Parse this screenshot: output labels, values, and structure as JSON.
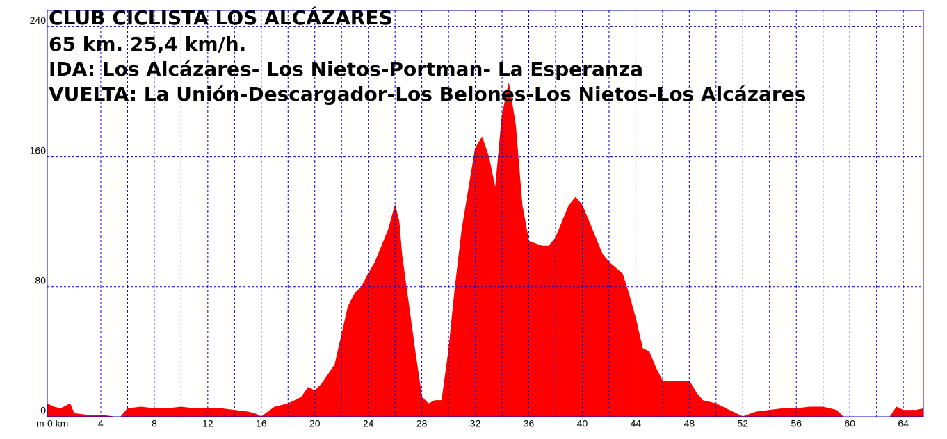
{
  "chart_data": {
    "type": "area",
    "title": "CLUB CICLISTA LOS ALCÁZARES",
    "annotations": [
      "65 km. 25,4 km/h.",
      "IDA: Los Alcázares- Los Nietos-Portman- La Esperanza",
      "VUELTA: La Unión-Descargador-Los Belones-Los Nietos-Los Alcázares"
    ],
    "y_label": "m",
    "color": "#ff0000",
    "grid": true,
    "grid_color": "#0000cc",
    "xlim": [
      0,
      65.5
    ],
    "ylim": [
      0,
      250
    ],
    "xticks": [
      {
        "value": 0,
        "label": "0 km"
      },
      4,
      8,
      12,
      16,
      20,
      24,
      28,
      32,
      36,
      40,
      44,
      48,
      52,
      56,
      60,
      64
    ],
    "xminorticks": [
      2,
      6,
      10,
      14,
      18,
      22,
      26,
      30,
      34,
      38,
      42,
      46,
      50,
      54,
      58,
      62
    ],
    "yticks": [
      0,
      80,
      160,
      240
    ],
    "x": [
      0,
      0.5,
      1,
      1.7,
      2,
      3,
      4,
      5,
      5.5,
      6,
      7,
      8,
      9,
      10,
      11,
      12,
      13,
      14,
      15,
      15.5,
      16,
      16.5,
      17,
      18,
      19,
      19.5,
      20,
      20.5,
      21,
      21.5,
      22,
      22.5,
      23,
      23.5,
      24,
      24.5,
      25,
      25.5,
      26,
      26.3,
      26.5,
      27,
      27.5,
      28,
      28.5,
      29,
      29.5,
      30,
      30.5,
      31,
      31.5,
      32,
      32.5,
      33,
      33.5,
      34,
      34.5,
      35,
      35.5,
      36,
      37,
      37.5,
      38,
      38.5,
      39,
      39.5,
      40,
      40.5,
      41,
      41.5,
      42,
      43,
      43.5,
      44,
      44.5,
      45,
      45.5,
      46,
      47,
      48,
      48.5,
      49,
      50,
      51,
      52,
      53,
      54,
      55,
      56,
      57,
      58,
      59,
      59.5,
      60,
      62,
      63,
      63.5,
      64,
      65,
      65.5
    ],
    "values": [
      8,
      6,
      5,
      8,
      2,
      1,
      1,
      0,
      0,
      5,
      6,
      5,
      5,
      6,
      5,
      5,
      5,
      4,
      3,
      2,
      0,
      3,
      6,
      8,
      12,
      18,
      16,
      20,
      26,
      32,
      50,
      68,
      76,
      80,
      88,
      95,
      105,
      115,
      130,
      120,
      100,
      70,
      40,
      12,
      8,
      10,
      10,
      40,
      80,
      115,
      140,
      165,
      172,
      160,
      140,
      185,
      205,
      180,
      130,
      108,
      105,
      105,
      110,
      120,
      130,
      135,
      130,
      120,
      110,
      100,
      95,
      88,
      75,
      60,
      42,
      40,
      30,
      22,
      22,
      22,
      15,
      10,
      8,
      4,
      0,
      3,
      4,
      5,
      5,
      6,
      6,
      4,
      0,
      0,
      0,
      0,
      6,
      4,
      4,
      5
    ]
  }
}
